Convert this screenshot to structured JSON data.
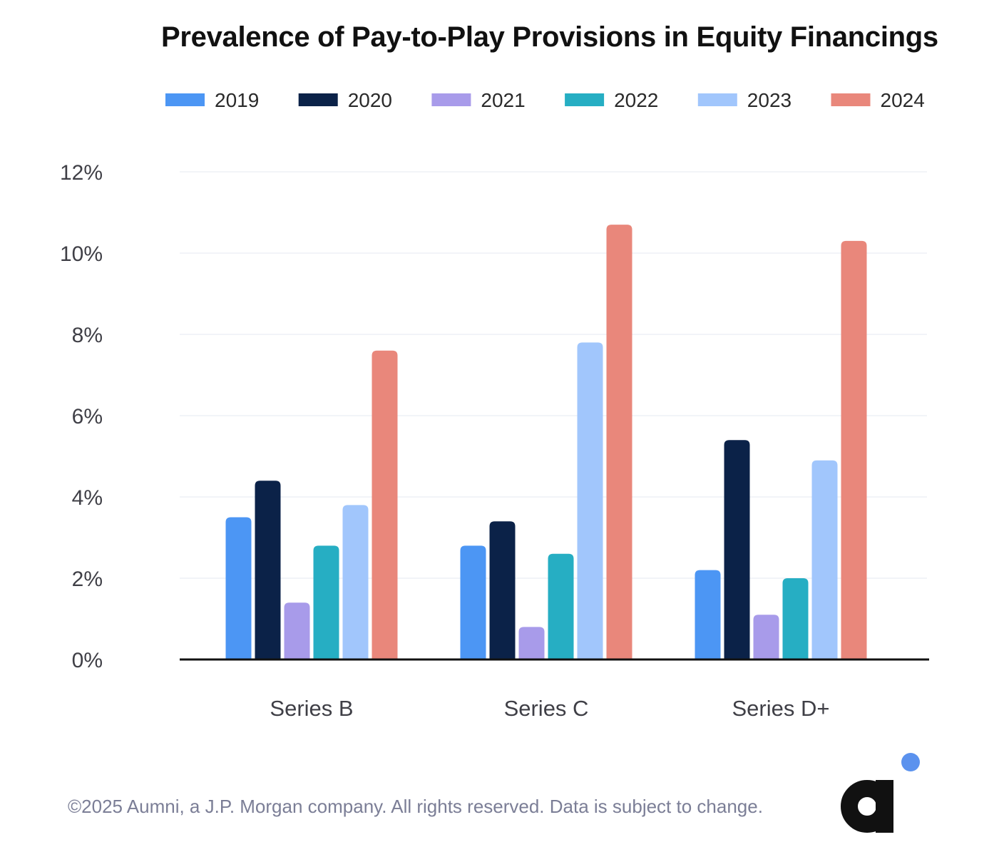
{
  "chart_data": {
    "type": "bar",
    "title": "Prevalence of Pay-to-Play Provisions in Equity Financings",
    "categories": [
      "Series B",
      "Series C",
      "Series D+"
    ],
    "series": [
      {
        "name": "2019",
        "color": "#4c96f4",
        "values": [
          3.5,
          2.8,
          2.2
        ]
      },
      {
        "name": "2020",
        "color": "#0b2248",
        "values": [
          4.4,
          3.4,
          5.4
        ]
      },
      {
        "name": "2021",
        "color": "#a89bea",
        "values": [
          1.4,
          0.8,
          1.1
        ]
      },
      {
        "name": "2022",
        "color": "#26aec3",
        "values": [
          2.8,
          2.6,
          2.0
        ]
      },
      {
        "name": "2023",
        "color": "#a1c6fc",
        "values": [
          3.8,
          7.8,
          4.9
        ]
      },
      {
        "name": "2024",
        "color": "#e9877b",
        "values": [
          7.6,
          10.7,
          10.3
        ]
      }
    ],
    "yticks": [
      "0%",
      "2%",
      "4%",
      "6%",
      "8%",
      "10%",
      "12%"
    ],
    "ylim": [
      0,
      12
    ],
    "xlabel": "",
    "ylabel": "",
    "grid": true,
    "legend": "top"
  },
  "footer": "©2025 Aumni, a J.P. Morgan company. All rights reserved. Data is subject to change.",
  "logo": {
    "letter": "a",
    "dot_color": "#5b92ee",
    "letter_color": "#111111"
  }
}
